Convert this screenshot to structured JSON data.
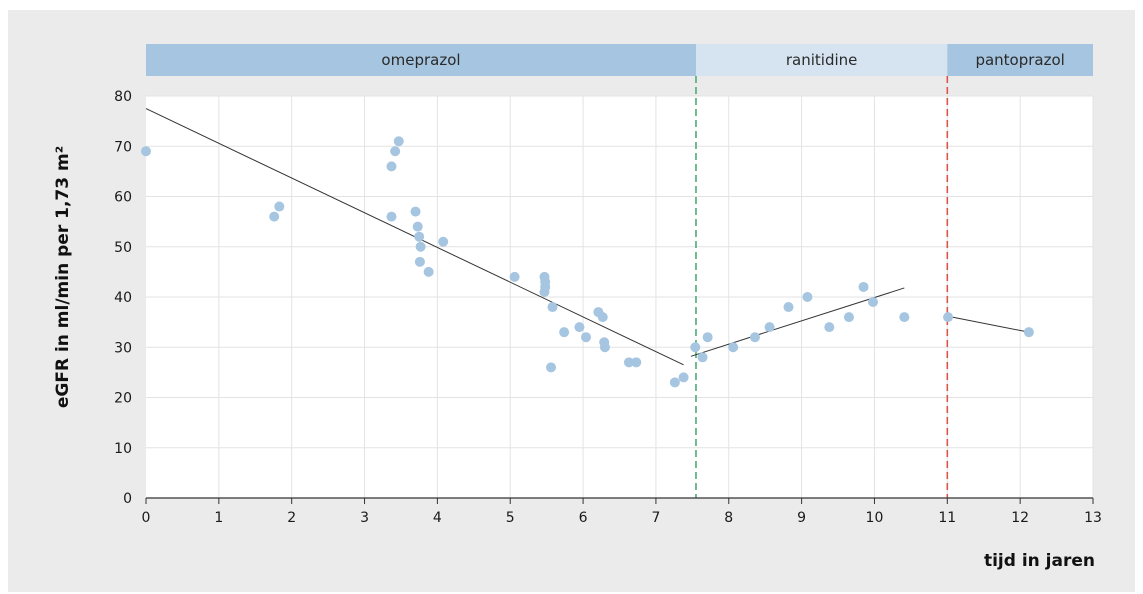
{
  "chart_data": {
    "type": "scatter",
    "xlabel": "tijd in jaren",
    "ylabel": "eGFR in ml/min per 1,73 m²",
    "xlim": [
      0,
      13
    ],
    "ylim": [
      0,
      80
    ],
    "x_ticks": [
      0,
      1,
      2,
      3,
      4,
      5,
      6,
      7,
      8,
      9,
      10,
      11,
      12,
      13
    ],
    "y_ticks": [
      0,
      10,
      20,
      30,
      40,
      50,
      60,
      70,
      80
    ],
    "grid": true,
    "point_color": "#a6c5e0",
    "phases": [
      {
        "label": "omeprazol",
        "start": 0,
        "end": 7.55,
        "color": "#a6c5e0"
      },
      {
        "label": "ranitidine",
        "start": 7.55,
        "end": 11.0,
        "color": "#d6e4f2"
      },
      {
        "label": "pantoprazol",
        "start": 11.0,
        "end": 13,
        "color": "#a6c5e0"
      }
    ],
    "switch_lines": [
      {
        "x": 7.55,
        "color": "#4cab7a"
      },
      {
        "x": 11.0,
        "color": "#d9574a"
      }
    ],
    "points": [
      [
        0.0,
        69
      ],
      [
        1.76,
        56
      ],
      [
        1.83,
        58
      ],
      [
        3.37,
        56
      ],
      [
        3.37,
        66
      ],
      [
        3.42,
        69
      ],
      [
        3.47,
        71
      ],
      [
        3.7,
        57
      ],
      [
        3.73,
        54
      ],
      [
        3.75,
        52
      ],
      [
        3.77,
        50
      ],
      [
        3.76,
        47
      ],
      [
        3.88,
        45
      ],
      [
        4.08,
        51
      ],
      [
        5.06,
        44
      ],
      [
        5.47,
        44
      ],
      [
        5.48,
        43
      ],
      [
        5.48,
        42
      ],
      [
        5.47,
        41
      ],
      [
        5.58,
        38
      ],
      [
        5.56,
        26
      ],
      [
        5.74,
        33
      ],
      [
        5.95,
        34
      ],
      [
        6.04,
        32
      ],
      [
        6.21,
        37
      ],
      [
        6.27,
        36
      ],
      [
        6.29,
        31
      ],
      [
        6.3,
        30
      ],
      [
        6.63,
        27
      ],
      [
        6.73,
        27
      ],
      [
        7.26,
        23
      ],
      [
        7.38,
        24
      ],
      [
        7.54,
        30
      ],
      [
        7.64,
        28
      ],
      [
        7.71,
        32
      ],
      [
        8.06,
        30
      ],
      [
        8.36,
        32
      ],
      [
        8.56,
        34
      ],
      [
        8.82,
        38
      ],
      [
        9.08,
        40
      ],
      [
        9.38,
        34
      ],
      [
        9.65,
        36
      ],
      [
        9.85,
        42
      ],
      [
        9.98,
        39
      ],
      [
        10.41,
        36
      ],
      [
        11.01,
        36
      ],
      [
        12.12,
        33
      ]
    ],
    "trend_lines": [
      {
        "from": [
          0,
          77.5
        ],
        "to": [
          7.38,
          26.5
        ]
      },
      {
        "from": [
          7.48,
          28.2
        ],
        "to": [
          10.41,
          41.8
        ]
      },
      {
        "from": [
          11.0,
          36.2
        ],
        "to": [
          12.12,
          33.0
        ]
      }
    ]
  }
}
